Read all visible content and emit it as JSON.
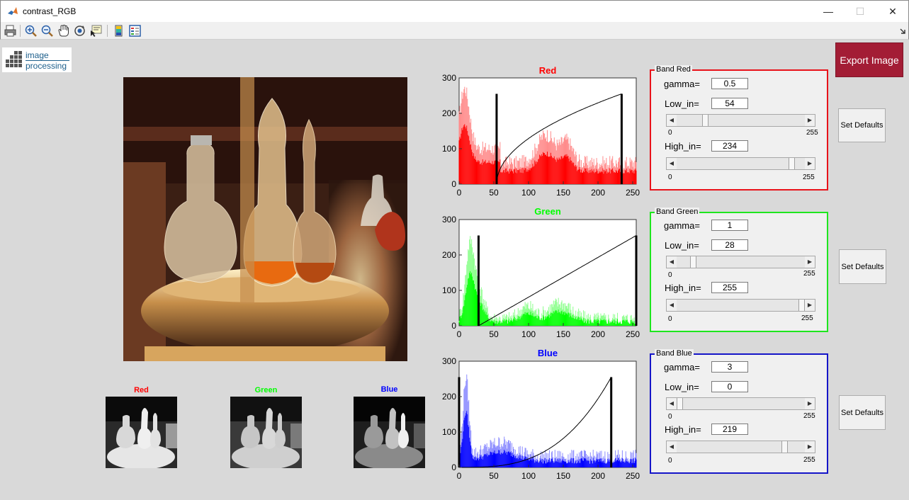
{
  "window": {
    "title": "contrast_RGB",
    "minimize": "—",
    "maximize": "☐",
    "close": "✕"
  },
  "toolbar": {
    "icons": [
      "print-icon",
      "zoom-in-icon",
      "zoom-out-icon",
      "pan-icon",
      "rotate-icon",
      "data-cursor-icon",
      "colorbar-icon",
      "legend-icon"
    ]
  },
  "logo": {
    "line1": "image",
    "line2": "processing"
  },
  "channels": {
    "red": {
      "label": "Red",
      "color": "#ff0000"
    },
    "green": {
      "label": "Green",
      "color": "#00ff00"
    },
    "blue": {
      "label": "Blue",
      "color": "#0000ff"
    }
  },
  "histograms": [
    {
      "title": "Red",
      "color": "#ff0000",
      "low_in": 54,
      "high_in": 234,
      "gamma": 0.5
    },
    {
      "title": "Green",
      "color": "#00ff00",
      "low_in": 28,
      "high_in": 255,
      "gamma": 1
    },
    {
      "title": "Blue",
      "color": "#0000ff",
      "low_in": 0,
      "high_in": 219,
      "gamma": 3
    }
  ],
  "axis": {
    "y_ticks": [
      "300",
      "200",
      "100",
      "0"
    ],
    "x_ticks": [
      "0",
      "50",
      "100",
      "150",
      "200",
      "250"
    ],
    "ylim": [
      0,
      300
    ],
    "xlim": [
      0,
      255
    ]
  },
  "panels": [
    {
      "legend": "Band Red",
      "gamma_label": "gamma=",
      "gamma": "0.5",
      "low_label": "Low_in=",
      "low": "54",
      "high_label": "High_in=",
      "high": "234",
      "min": "0",
      "max": "255",
      "low_frac": 0.21,
      "high_frac": 0.92,
      "color": "#e8121a"
    },
    {
      "legend": "Band Green",
      "gamma_label": "gamma=",
      "gamma": "1",
      "low_label": "Low_in=",
      "low": "28",
      "high_label": "High_in=",
      "high": "255",
      "min": "0",
      "max": "255",
      "low_frac": 0.11,
      "high_frac": 1.0,
      "color": "#1ee61e"
    },
    {
      "legend": "Band Blue",
      "gamma_label": "gamma=",
      "gamma": "3",
      "low_label": "Low_in=",
      "low": "0",
      "high_label": "High_in=",
      "high": "219",
      "min": "0",
      "max": "255",
      "low_frac": 0.0,
      "high_frac": 0.86,
      "color": "#1515c8"
    }
  ],
  "buttons": {
    "set_defaults": "Set Defaults",
    "export": "Export Image"
  }
}
